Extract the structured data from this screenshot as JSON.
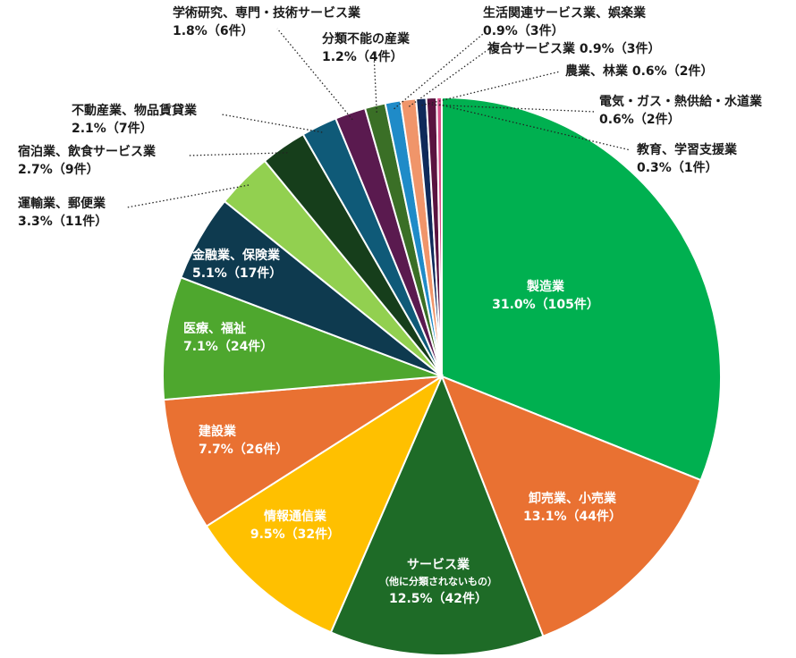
{
  "chart_data": {
    "type": "pie",
    "start_angle_deg": 0,
    "direction": "clockwise",
    "slices": [
      {
        "label": "製造業",
        "percent": 31.0,
        "count_text": "31.0%（105件）",
        "value": 105,
        "color": "#00b050"
      },
      {
        "label": "卸売業、小売業",
        "percent": 13.1,
        "count_text": "13.1%（44件）",
        "value": 44,
        "color": "#e97132"
      },
      {
        "label": "サービス業",
        "sublabel": "（他に分類されないもの）",
        "percent": 12.5,
        "count_text": "12.5%（42件）",
        "value": 42,
        "color": "#1e6b27"
      },
      {
        "label": "情報通信業",
        "percent": 9.5,
        "count_text": "9.5%（32件）",
        "value": 32,
        "color": "#ffc000"
      },
      {
        "label": "建設業",
        "percent": 7.7,
        "count_text": "7.7%（26件）",
        "value": 26,
        "color": "#e97132"
      },
      {
        "label": "医療、福祉",
        "percent": 7.1,
        "count_text": "7.1%（24件）",
        "value": 24,
        "color": "#4ea72e"
      },
      {
        "label": "金融業、保険業",
        "percent": 5.1,
        "count_text": "5.1%（17件）",
        "value": 17,
        "color": "#0e3a4f"
      },
      {
        "label": "運輸業、郵便業",
        "percent": 3.3,
        "count_text": "3.3%（11件）",
        "value": 11,
        "color": "#92d050"
      },
      {
        "label": "宿泊業、飲食サービス業",
        "percent": 2.7,
        "count_text": "2.7%（9件）",
        "value": 9,
        "color": "#163e1b"
      },
      {
        "label": "不動産業、物品賃貸業",
        "percent": 2.1,
        "count_text": "2.1%（7件）",
        "value": 7,
        "color": "#0f5a78"
      },
      {
        "label": "学術研究、専門・技術サービス業",
        "percent": 1.8,
        "count_text": "1.8%（6件）",
        "value": 6,
        "color": "#5a1a4f"
      },
      {
        "label": "分類不能の産業",
        "percent": 1.2,
        "count_text": "1.2%（4件）",
        "value": 4,
        "color": "#3a6f26"
      },
      {
        "label": "生活関連サービス業、娯楽業",
        "percent": 0.9,
        "count_text": "0.9%（3件）",
        "value": 3,
        "color": "#1f8bc8"
      },
      {
        "label": "複合サービス業",
        "percent": 0.9,
        "count_text": "0.9%（3件）",
        "value": 3,
        "color": "#f0956a"
      },
      {
        "label": "農業、林業",
        "percent": 0.6,
        "count_text": "0.6%（2件）",
        "value": 2,
        "color": "#0f2a5a"
      },
      {
        "label": "電気・ガス・熱供給・水道業",
        "percent": 0.6,
        "count_text": "0.6%（2件）",
        "value": 2,
        "color": "#5a1340"
      },
      {
        "label": "教育、学習支援業",
        "percent": 0.3,
        "count_text": "0.3%（1件）",
        "value": 1,
        "color": "#d8508a"
      }
    ],
    "text_labels": [
      {
        "lines": [
          "製造業",
          "31.0%（105件）"
        ],
        "placement": "inside"
      },
      {
        "lines": [
          "卸売業、小売業",
          "13.1%（44件）"
        ],
        "placement": "inside"
      },
      {
        "lines": [
          "サービス業",
          "（他に分類されないもの）",
          "12.5%（42件）"
        ],
        "placement": "inside"
      },
      {
        "lines": [
          "情報通信業",
          "9.5%（32件）"
        ],
        "placement": "inside"
      },
      {
        "lines": [
          "建設業",
          "7.7%（26件）"
        ],
        "placement": "inside"
      },
      {
        "lines": [
          "医療、福祉",
          "7.1%（24件）"
        ],
        "placement": "inside"
      },
      {
        "lines": [
          "金融業、保険業",
          "5.1%（17件）"
        ],
        "placement": "inside"
      },
      {
        "lines": [
          "運輸業、郵便業",
          "3.3%（11件）"
        ],
        "placement": "outside"
      },
      {
        "lines": [
          "宿泊業、飲食サービス業",
          "2.7%（9件）"
        ],
        "placement": "outside"
      },
      {
        "lines": [
          "不動産業、物品賃貸業",
          "2.1%（7件）"
        ],
        "placement": "outside"
      },
      {
        "lines": [
          "学術研究、専門・技術サービス業",
          "1.8%（6件）"
        ],
        "placement": "outside"
      },
      {
        "lines": [
          "分類不能の産業",
          "1.2%（4件）"
        ],
        "placement": "outside"
      },
      {
        "lines": [
          "生活関連サービス業、娯楽業",
          "0.9%（3件）"
        ],
        "placement": "outside"
      },
      {
        "lines": [
          "複合サービス業 0.9%（3件）"
        ],
        "placement": "outside"
      },
      {
        "lines": [
          "農業、林業 0.6%（2件）"
        ],
        "placement": "outside"
      },
      {
        "lines": [
          "電気・ガス・熱供給・水道業",
          "0.6%（2件）"
        ],
        "placement": "outside"
      },
      {
        "lines": [
          "教育、学習支援業",
          "0.3%（1件）"
        ],
        "placement": "outside"
      }
    ]
  }
}
